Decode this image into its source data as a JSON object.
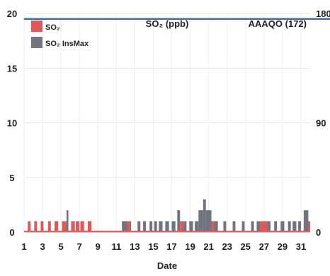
{
  "chart_data": {
    "type": "bar",
    "title": "SO₂ (ppb)",
    "subtitle": "AAAQO (172)",
    "xlabel": "Date",
    "x_tick_labels": [
      "1",
      "3",
      "5",
      "7",
      "9",
      "11",
      "13",
      "15",
      "17",
      "19",
      "21",
      "23",
      "25",
      "27",
      "29",
      "31"
    ],
    "x_range": [
      1,
      32
    ],
    "ylim_left": [
      0,
      20
    ],
    "y_ticks_left": [
      0,
      5,
      10,
      15,
      20
    ],
    "ylim_right": [
      0,
      180
    ],
    "y_ticks_right": [
      0,
      90,
      180
    ],
    "grid": true,
    "legend_position": "top-left",
    "reference_line": {
      "value_left_axis": 19.5,
      "color": "#3c6fb4"
    },
    "series": [
      {
        "name": "SO₂",
        "color": "#e15759",
        "axis": "left",
        "segments": [
          {
            "start": 1.4,
            "end": 1.7,
            "value": 1
          },
          {
            "start": 2.1,
            "end": 2.4,
            "value": 1
          },
          {
            "start": 2.8,
            "end": 3.1,
            "value": 1
          },
          {
            "start": 3.6,
            "end": 3.9,
            "value": 1
          },
          {
            "start": 4.3,
            "end": 4.7,
            "value": 1
          },
          {
            "start": 5.1,
            "end": 5.6,
            "value": 1
          },
          {
            "start": 6.1,
            "end": 6.5,
            "value": 1
          },
          {
            "start": 6.6,
            "end": 7.0,
            "value": 1
          },
          {
            "start": 7.1,
            "end": 7.5,
            "value": 1
          },
          {
            "start": 7.9,
            "end": 8.3,
            "value": 1
          },
          {
            "start": 12.2,
            "end": 12.5,
            "value": 1
          },
          {
            "start": 17.9,
            "end": 18.3,
            "value": 1
          },
          {
            "start": 20.7,
            "end": 21.6,
            "value": 1
          },
          {
            "start": 26.6,
            "end": 27.4,
            "value": 1
          },
          {
            "start": 31.3,
            "end": 32.0,
            "value": 1
          }
        ]
      },
      {
        "name": "SO₂ InsMax",
        "color": "#6e7580",
        "axis": "left",
        "segments": [
          {
            "start": 5.6,
            "end": 5.8,
            "value": 2
          },
          {
            "start": 11.6,
            "end": 12.2,
            "value": 1
          },
          {
            "start": 12.5,
            "end": 12.6,
            "value": 1
          },
          {
            "start": 13.3,
            "end": 13.6,
            "value": 1
          },
          {
            "start": 13.9,
            "end": 14.2,
            "value": 1
          },
          {
            "start": 14.6,
            "end": 14.9,
            "value": 1
          },
          {
            "start": 15.1,
            "end": 15.4,
            "value": 1
          },
          {
            "start": 15.6,
            "end": 16.0,
            "value": 1
          },
          {
            "start": 16.3,
            "end": 16.7,
            "value": 1
          },
          {
            "start": 17.0,
            "end": 17.4,
            "value": 1
          },
          {
            "start": 17.6,
            "end": 17.9,
            "value": 2
          },
          {
            "start": 18.3,
            "end": 18.6,
            "value": 1
          },
          {
            "start": 18.9,
            "end": 19.3,
            "value": 1
          },
          {
            "start": 19.5,
            "end": 19.9,
            "value": 1
          },
          {
            "start": 19.9,
            "end": 20.4,
            "value": 2
          },
          {
            "start": 20.4,
            "end": 20.7,
            "value": 3
          },
          {
            "start": 20.7,
            "end": 21.3,
            "value": 2
          },
          {
            "start": 21.6,
            "end": 22.0,
            "value": 1
          },
          {
            "start": 22.6,
            "end": 22.9,
            "value": 1
          },
          {
            "start": 23.6,
            "end": 23.9,
            "value": 1
          },
          {
            "start": 24.6,
            "end": 24.9,
            "value": 1
          },
          {
            "start": 25.6,
            "end": 25.9,
            "value": 1
          },
          {
            "start": 26.2,
            "end": 26.6,
            "value": 1
          },
          {
            "start": 27.4,
            "end": 27.7,
            "value": 1
          },
          {
            "start": 28.1,
            "end": 28.4,
            "value": 1
          },
          {
            "start": 28.8,
            "end": 29.2,
            "value": 1
          },
          {
            "start": 29.6,
            "end": 29.9,
            "value": 1
          },
          {
            "start": 30.1,
            "end": 30.5,
            "value": 1
          },
          {
            "start": 30.7,
            "end": 31.0,
            "value": 1
          },
          {
            "start": 31.3,
            "end": 31.8,
            "value": 2
          }
        ]
      }
    ]
  }
}
